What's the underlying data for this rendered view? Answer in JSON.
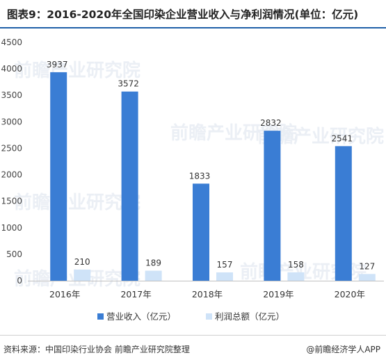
{
  "title": "图表9：2016-2020年全国印染企业营业收入与净利润情况(单位：亿元)",
  "watermark": "前瞻产业研究院",
  "footer": {
    "source": "资料来源：中国印染行业协会 前瞻产业研究院整理",
    "credit": "@前瞻经济学人APP"
  },
  "colors": {
    "revenue": "#3a7dd4",
    "profit": "#cfe3f8",
    "title_rule": "#1f5fa8"
  },
  "chart_data": {
    "type": "bar",
    "categories": [
      "2016年",
      "2017年",
      "2018年",
      "2019年",
      "2020年"
    ],
    "series": [
      {
        "name": "营业收入（亿元）",
        "values": [
          3937,
          3572,
          1833,
          2832,
          2541
        ]
      },
      {
        "name": "利润总额（亿元）",
        "values": [
          210,
          189,
          157,
          158,
          127
        ]
      }
    ],
    "ylim": [
      0,
      4500
    ],
    "yticks": [
      0,
      500,
      1000,
      1500,
      2000,
      2500,
      3000,
      3500,
      4000,
      4500
    ],
    "data_labels": true,
    "grid": false,
    "legend_position": "bottom"
  }
}
